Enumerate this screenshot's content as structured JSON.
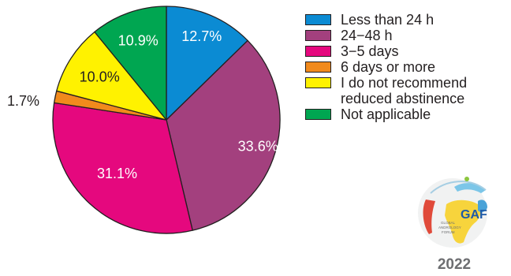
{
  "chart_data": {
    "type": "pie",
    "categories": [
      "Less than 24 h",
      "24−48 h",
      "3−5 days",
      "6 days or more",
      "I do not recommend reduced abstinence",
      "Not applicable"
    ],
    "values": [
      12.7,
      33.6,
      31.1,
      1.7,
      10.0,
      10.9
    ],
    "labels": [
      "12.7%",
      "33.6%",
      "31.1%",
      "1.7%",
      "10.0%",
      "10.9%"
    ],
    "colors": [
      "#0b8bd3",
      "#a3407e",
      "#e5087e",
      "#f18a1c",
      "#fff200",
      "#00a651"
    ],
    "legend": "right"
  },
  "legend": {
    "items": [
      {
        "label": "Less than 24 h",
        "color": "#0b8bd3"
      },
      {
        "label": "24−48 h",
        "color": "#a3407e"
      },
      {
        "label": "3−5 days",
        "color": "#e5087e"
      },
      {
        "label": "6 days or more",
        "color": "#f18a1c"
      },
      {
        "label": "I do not recommend reduced abstinence",
        "color": "#fff200"
      },
      {
        "label": "Not applicable",
        "color": "#00a651"
      }
    ]
  },
  "logo": {
    "text": "GLOBAL ANDROLOGY FORUM",
    "mark": "GAF",
    "year": "2022"
  }
}
